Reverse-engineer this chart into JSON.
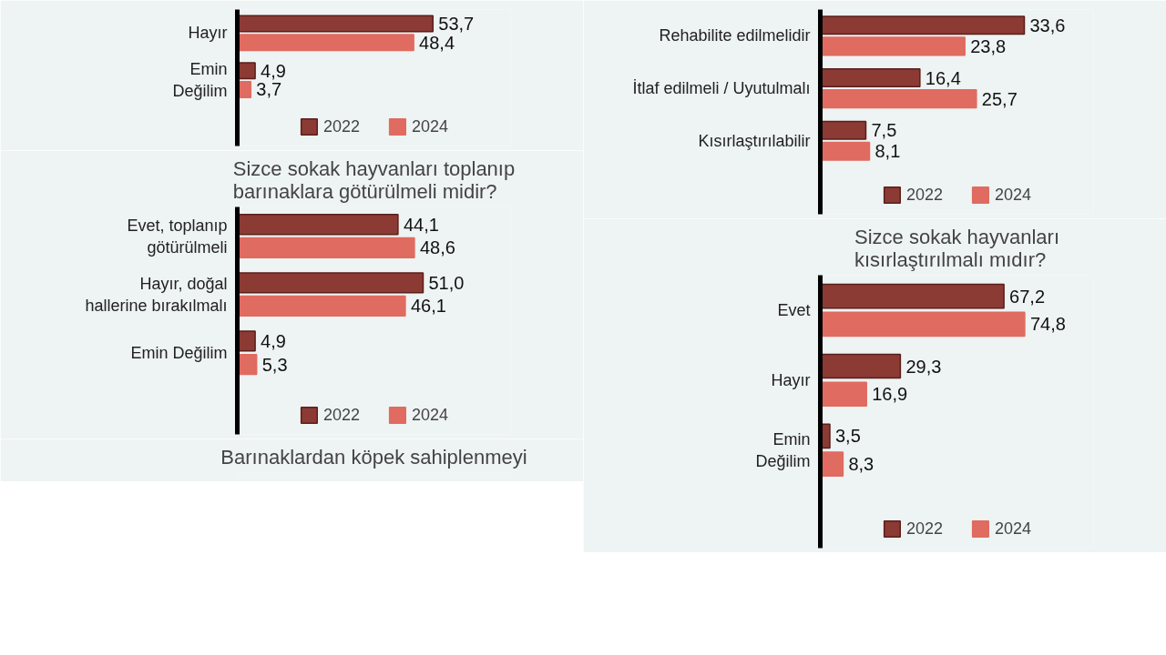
{
  "chart_data": [
    {
      "type": "bar",
      "orientation": "horizontal",
      "categories": [
        "Hayır",
        "Emin\nDeğilim"
      ],
      "xlim": [
        0,
        75
      ],
      "tick_labels": "y",
      "legend": "bottom",
      "grid": false,
      "series": [
        {
          "name": "2022",
          "color": "#8b3a34",
          "values": [
            53.7,
            4.9
          ],
          "value_labels": [
            "53,7",
            "4,9"
          ]
        },
        {
          "name": "2024",
          "color": "#e06b60",
          "values": [
            48.4,
            3.7
          ],
          "value_labels": [
            "48,4",
            "3,7"
          ]
        }
      ]
    },
    {
      "type": "bar",
      "orientation": "horizontal",
      "categories": [
        "Rehabilite edilmelidir",
        "İtlaf edilmeli / Uyutulmalı",
        "Kısırlaştırılabilir"
      ],
      "xlim": [
        0,
        45
      ],
      "tick_labels": "y",
      "legend": "bottom",
      "grid": false,
      "series": [
        {
          "name": "2022",
          "color": "#8b3a34",
          "values": [
            33.6,
            16.4,
            7.5
          ],
          "value_labels": [
            "33,6",
            "16,4",
            "7,5"
          ]
        },
        {
          "name": "2024",
          "color": "#e06b60",
          "values": [
            23.8,
            25.7,
            8.1
          ],
          "value_labels": [
            "23,8",
            "25,7",
            "8,1"
          ]
        }
      ]
    },
    {
      "type": "bar",
      "orientation": "horizontal",
      "title": "Sizce sokak hayvanları toplanıp\nbarınaklara götürülmeli midir?",
      "categories": [
        "Evet, toplanıp\ngötürülmeli",
        "Hayır, doğal\nhallerine bırakılmalı",
        "Emin Değilim"
      ],
      "xlim": [
        0,
        75
      ],
      "tick_labels": "y",
      "legend": "bottom",
      "grid": false,
      "series": [
        {
          "name": "2022",
          "color": "#8b3a34",
          "values": [
            44.1,
            51.0,
            4.9
          ],
          "value_labels": [
            "44,1",
            "51,0",
            "4,9"
          ]
        },
        {
          "name": "2024",
          "color": "#e06b60",
          "values": [
            48.6,
            46.1,
            5.3
          ],
          "value_labels": [
            "48,6",
            "46,1",
            "5,3"
          ]
        }
      ]
    },
    {
      "type": "bar",
      "orientation": "horizontal",
      "title": "Sizce sokak hayvanları\nkısırlaştırılmalı mıdır?",
      "categories": [
        "Evet",
        "Hayır",
        "Emin\nDeğilim"
      ],
      "xlim": [
        0,
        100
      ],
      "tick_labels": "y",
      "legend": "bottom",
      "grid": false,
      "series": [
        {
          "name": "2022",
          "color": "#8b3a34",
          "values": [
            67.2,
            29.3,
            3.5
          ],
          "value_labels": [
            "67,2",
            "29,3",
            "3,5"
          ]
        },
        {
          "name": "2024",
          "color": "#e06b60",
          "values": [
            74.8,
            16.9,
            8.3
          ],
          "value_labels": [
            "74,8",
            "16,9",
            "8,3"
          ]
        }
      ]
    },
    {
      "type": "other",
      "title": "Barınaklardan köpek sahiplenmeyi"
    }
  ]
}
